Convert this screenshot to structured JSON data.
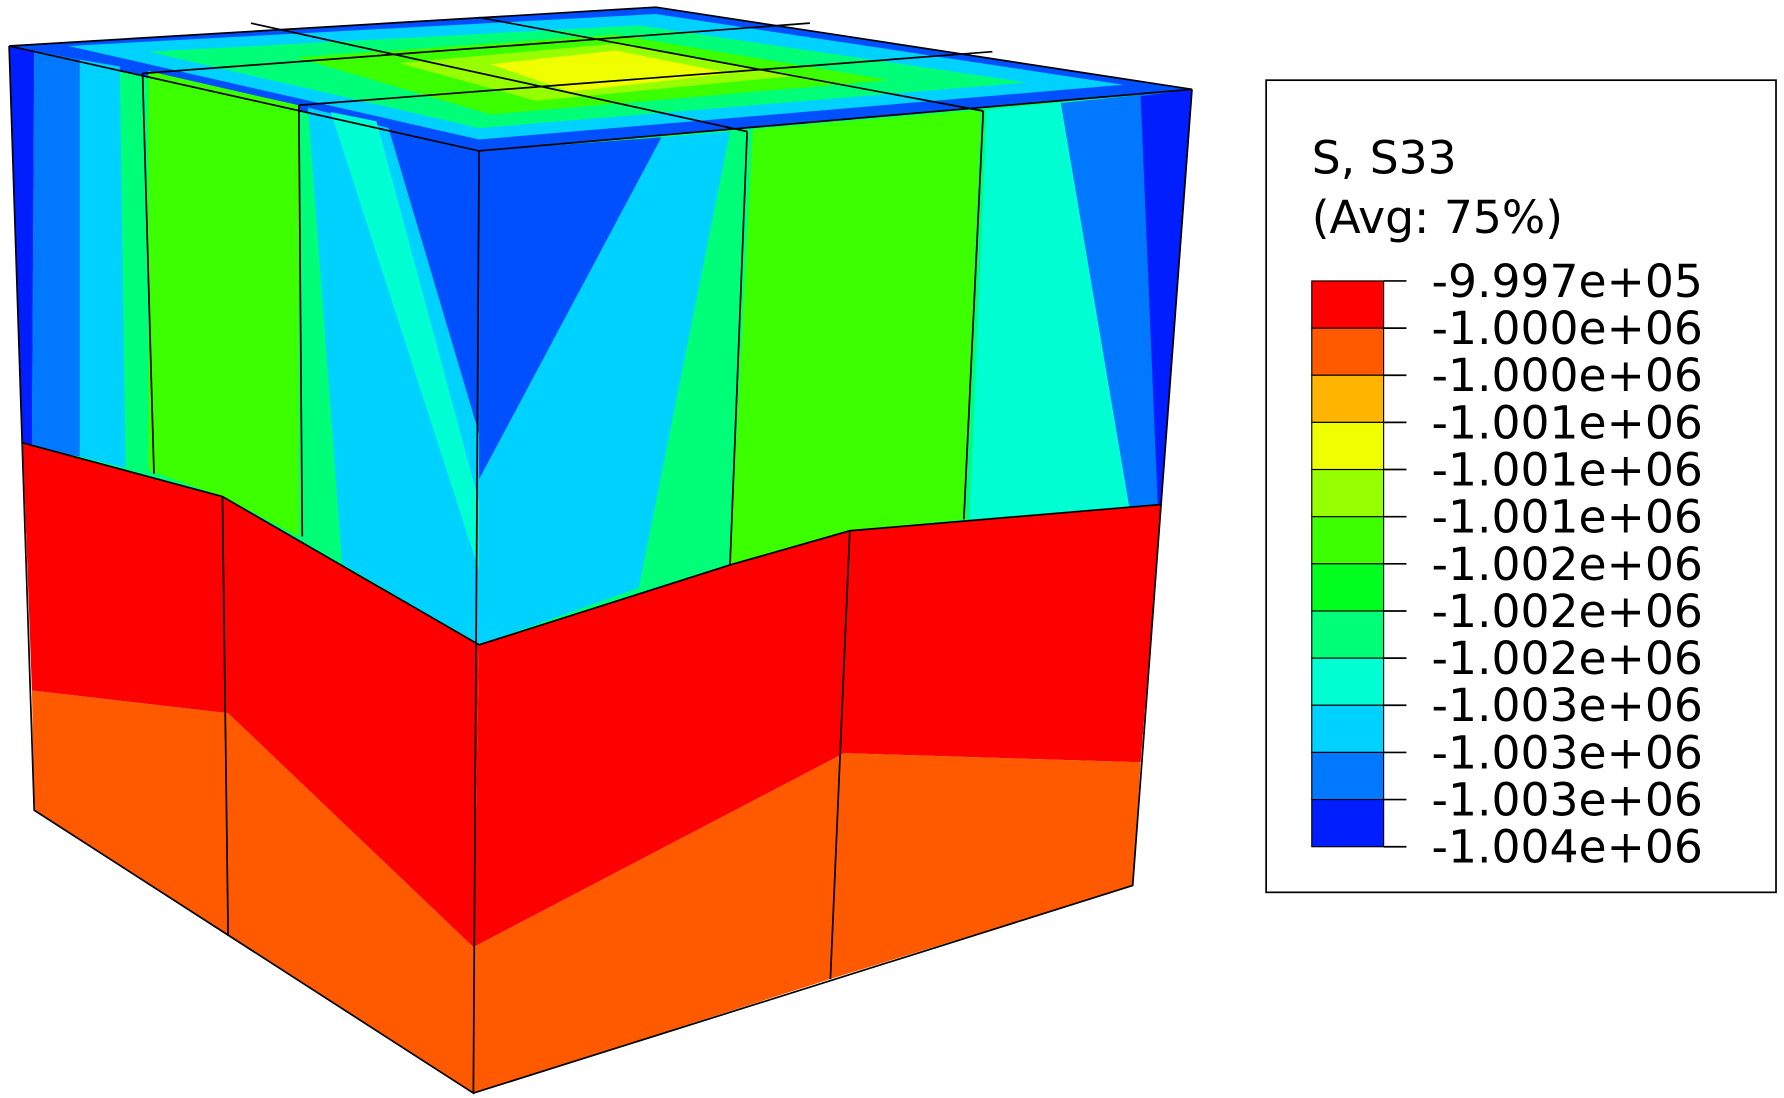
{
  "legend": {
    "title": "S, S33",
    "subtitle": "(Avg: 75%)",
    "labels": [
      "-9.997e+05",
      "-1.000e+06",
      "-1.000e+06",
      "-1.001e+06",
      "-1.001e+06",
      "-1.001e+06",
      "-1.002e+06",
      "-1.002e+06",
      "-1.002e+06",
      "-1.003e+06",
      "-1.003e+06",
      "-1.003e+06",
      "-1.004e+06"
    ],
    "colors": [
      "#ff0000",
      "#ff5a00",
      "#ffb400",
      "#f0ff00",
      "#96ff00",
      "#3cff00",
      "#00ff1e",
      "#00ff78",
      "#00ffd2",
      "#00d2ff",
      "#0078ff",
      "#001eff"
    ]
  }
}
